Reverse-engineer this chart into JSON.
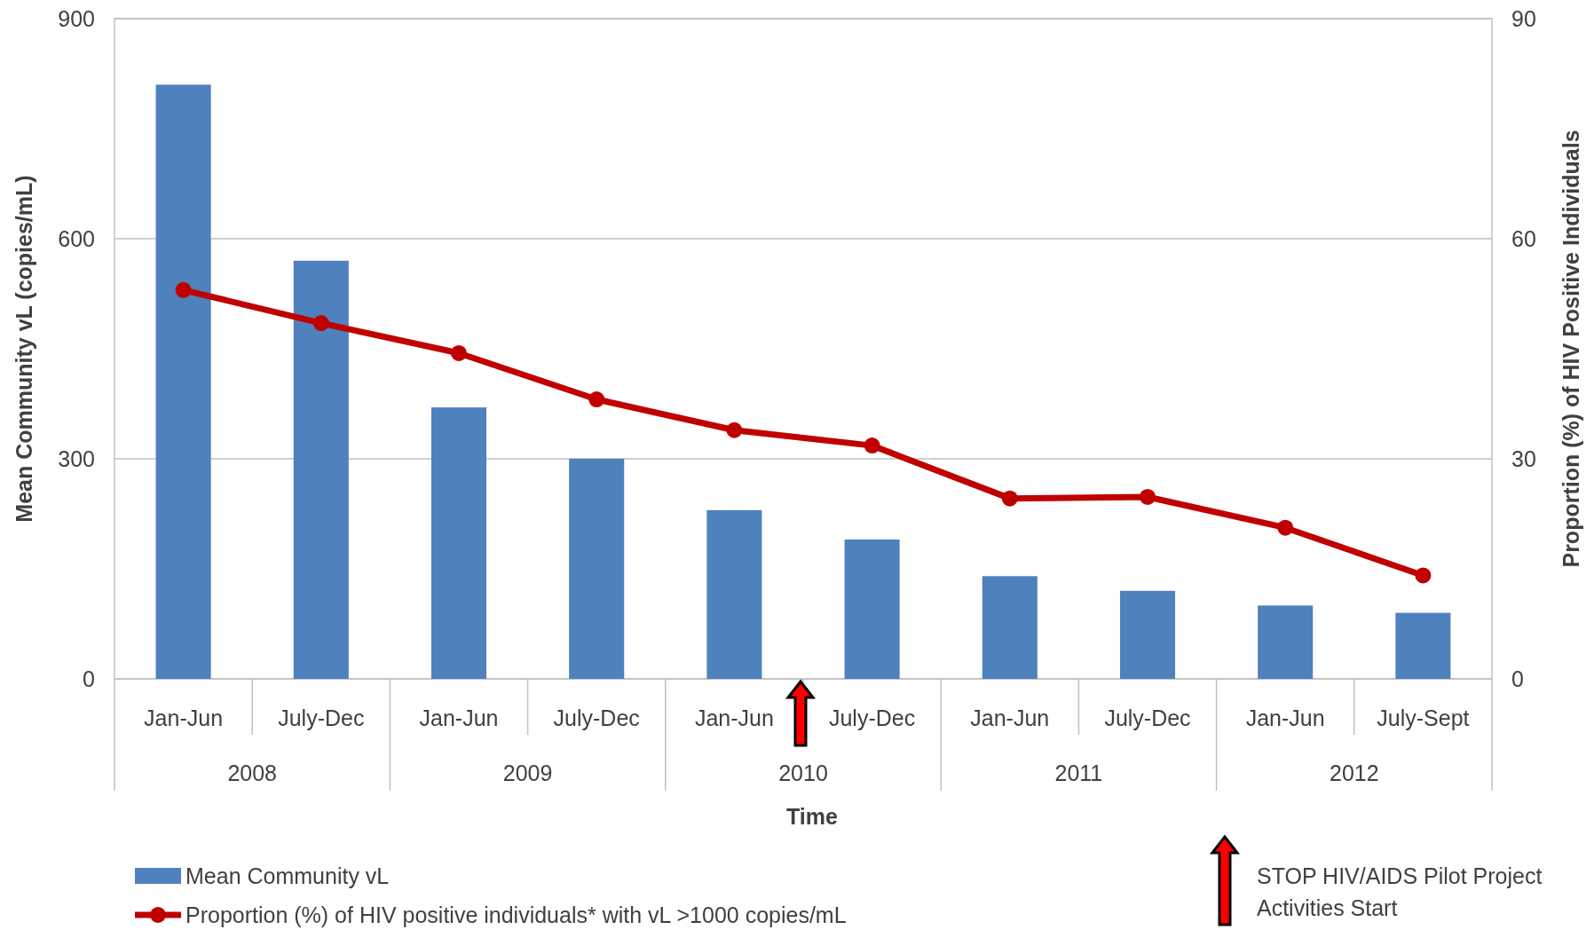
{
  "chart_data": {
    "type": "bar",
    "xlabel": "Time",
    "ylabel": "Mean Community vL (copies/mL)",
    "y2label": "Proportion (%) of HIV Positive Individuals",
    "categories": [
      "Jan-Jun",
      "July-Dec",
      "Jan-Jun",
      "July-Dec",
      "Jan-Jun",
      "July-Dec",
      "Jan-Jun",
      "July-Dec",
      "Jan-Jun",
      "July-Sept"
    ],
    "series": [
      {
        "name": "Mean Community vL",
        "color": "#4f81bd",
        "values": [
          810,
          570,
          370,
          300,
          230,
          190,
          140,
          120,
          100,
          90
        ]
      },
      {
        "name": "Proportion (%) of HIV positive individuals* with vL >1000 copies/mL",
        "type": "line",
        "axis": "y2",
        "color": "#c00000",
        "marker": "circle",
        "values": [
          53.0,
          48.5,
          44.4,
          38.1,
          33.9,
          31.8,
          24.6,
          24.8,
          20.6,
          14.1
        ]
      }
    ],
    "ylim": [
      0,
      900
    ],
    "yticks": [
      0,
      300,
      600,
      900
    ],
    "y2lim": [
      0,
      90
    ],
    "y2ticks": [
      0,
      30,
      60,
      90
    ],
    "grid": "y",
    "legend": "bottom left",
    "annotations": [
      "2008",
      "2009",
      "2010",
      "2011",
      "2012",
      "STOP HIV/AIDS Pilot Project Activities Start"
    ]
  }
}
